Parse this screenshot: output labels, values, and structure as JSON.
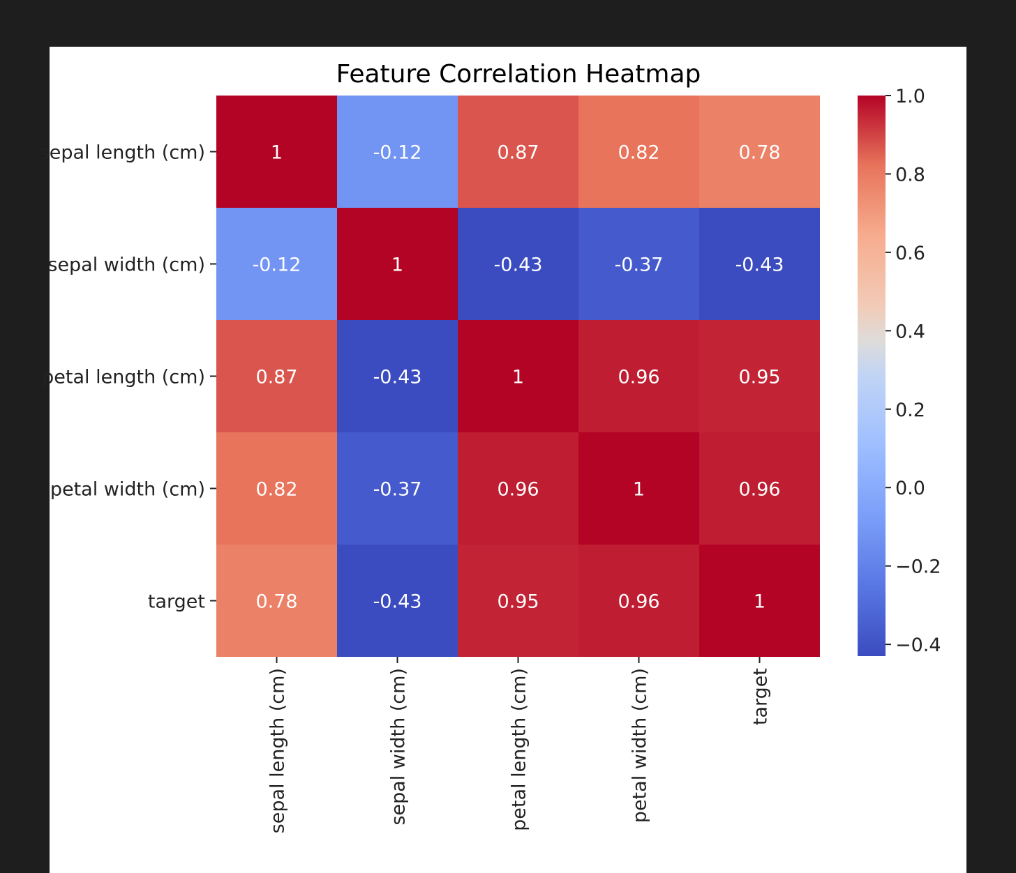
{
  "chart_data": {
    "type": "heatmap",
    "title": "Feature Correlation Heatmap",
    "xlabel": "",
    "ylabel": "",
    "rows": [
      "sepal length (cm)",
      "sepal width (cm)",
      "petal length (cm)",
      "petal width (cm)",
      "target"
    ],
    "columns": [
      "sepal length (cm)",
      "sepal width (cm)",
      "petal length (cm)",
      "petal width (cm)",
      "target"
    ],
    "values": [
      [
        1,
        -0.12,
        0.87,
        0.82,
        0.78
      ],
      [
        -0.12,
        1,
        -0.43,
        -0.37,
        -0.43
      ],
      [
        0.87,
        -0.43,
        1,
        0.96,
        0.95
      ],
      [
        0.82,
        -0.37,
        0.96,
        1,
        0.96
      ],
      [
        0.78,
        -0.43,
        0.95,
        0.96,
        1
      ]
    ],
    "cell_labels": [
      [
        "1",
        "-0.12",
        "0.87",
        "0.82",
        "0.78"
      ],
      [
        "-0.12",
        "1",
        "-0.43",
        "-0.37",
        "-0.43"
      ],
      [
        "0.87",
        "-0.43",
        "1",
        "0.96",
        "0.95"
      ],
      [
        "0.82",
        "-0.37",
        "0.96",
        "1",
        "0.96"
      ],
      [
        "0.78",
        "-0.43",
        "0.95",
        "0.96",
        "1"
      ]
    ],
    "colormap": "coolwarm",
    "colorbar": {
      "range": [
        -0.43,
        1.0
      ],
      "ticks": [
        1.0,
        0.8,
        0.6,
        0.4,
        0.2,
        0.0,
        -0.2,
        -0.4
      ],
      "tick_labels": [
        "1.0",
        "0.8",
        "0.6",
        "0.4",
        "0.2",
        "0.0",
        "−0.2",
        "−0.4"
      ]
    },
    "colors": {
      "low": "#3b4cc0",
      "mid": "#dddddd",
      "high": "#b40426"
    }
  }
}
